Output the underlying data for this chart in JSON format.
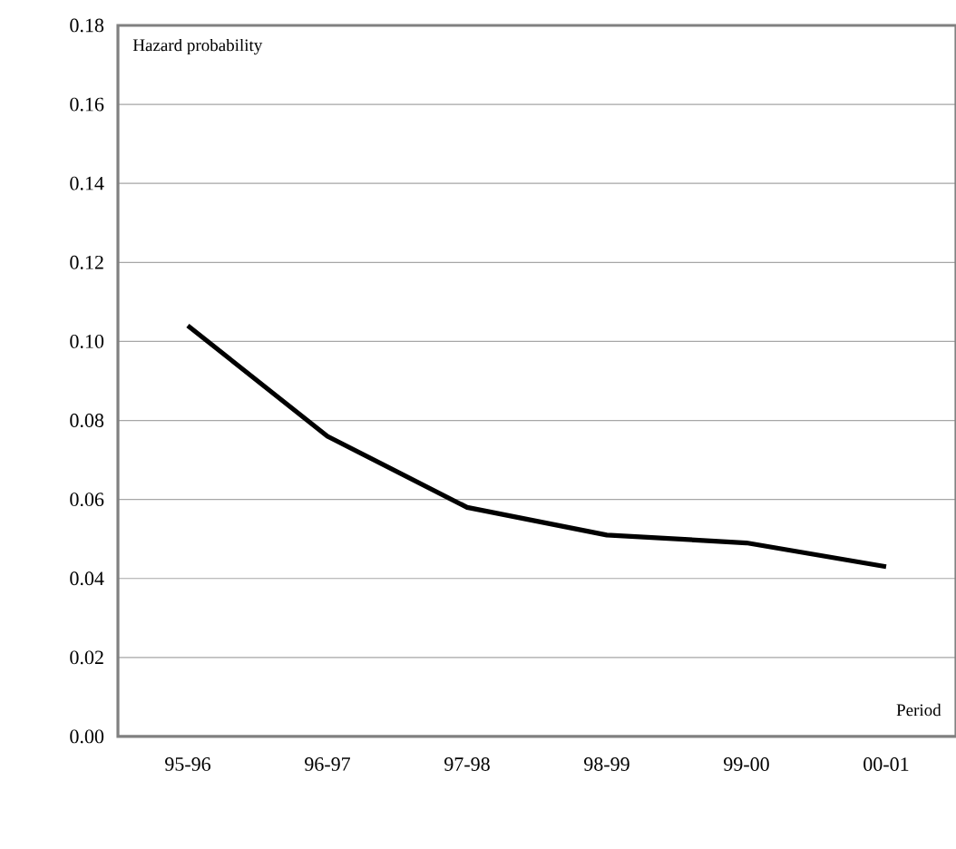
{
  "chart_data": {
    "type": "line",
    "xlabel": "Period",
    "ylabel": "Hazard probability",
    "categories": [
      "95-96",
      "96-97",
      "97-98",
      "98-99",
      "99-00",
      "00-01"
    ],
    "series": [
      {
        "color": "#000000",
        "values": [
          0.104,
          0.076,
          0.058,
          0.051,
          0.049,
          0.043
        ]
      }
    ],
    "ylim": [
      0,
      0.18
    ],
    "yticks": [
      {
        "value": 0,
        "label": "0.00"
      },
      {
        "value": 0.02,
        "label": "0.02"
      },
      {
        "value": 0.04,
        "label": "0.04"
      },
      {
        "value": 0.06,
        "label": "0.06"
      },
      {
        "value": 0.08,
        "label": "0.08"
      },
      {
        "value": 0.1,
        "label": "0.10"
      },
      {
        "value": 0.12,
        "label": "0.12"
      },
      {
        "value": 0.14,
        "label": "0.14"
      },
      {
        "value": 0.16,
        "label": "0.16"
      },
      {
        "value": 0.18,
        "label": "0.18"
      }
    ],
    "grid": "y",
    "marker": "none",
    "line_style": "solid"
  }
}
